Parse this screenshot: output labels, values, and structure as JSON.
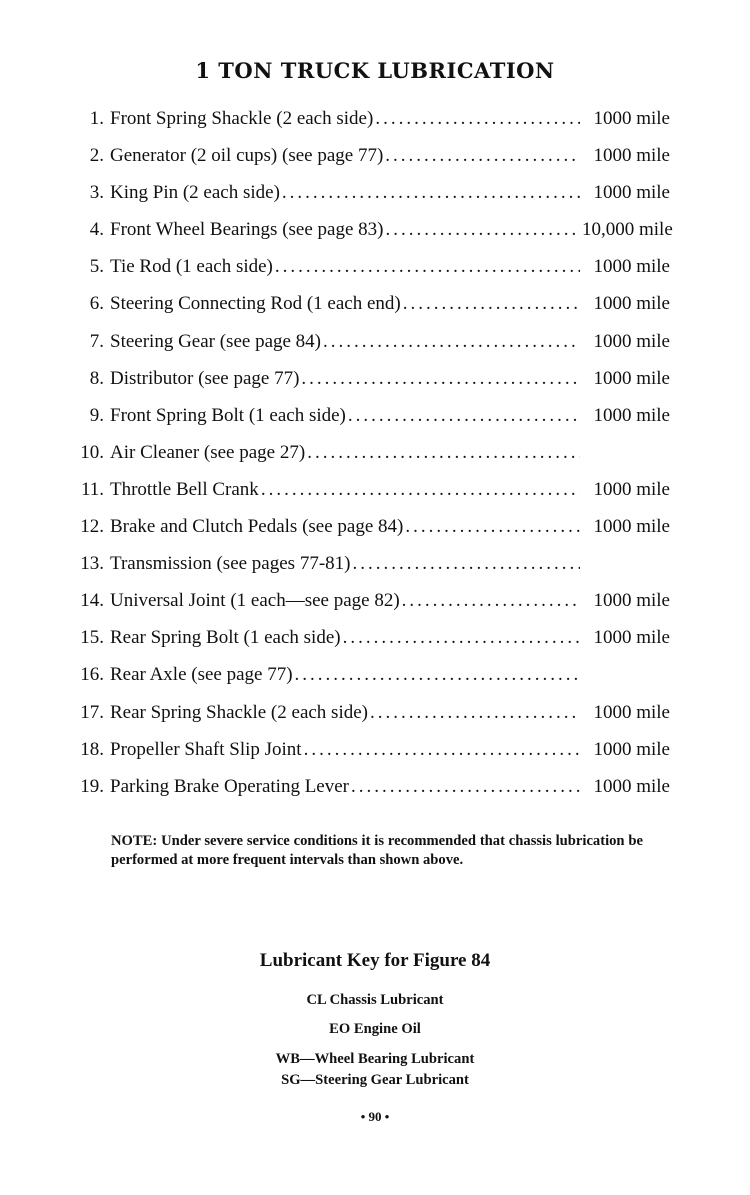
{
  "title": "1 TON TRUCK LUBRICATION",
  "items": [
    {
      "num": "1.",
      "label": "Front Spring Shackle (2 each side)",
      "value": "1000 mile"
    },
    {
      "num": "2.",
      "label": "Generator (2 oil cups) (see page 77)",
      "value": "1000 mile"
    },
    {
      "num": "3.",
      "label": "King Pin (2 each side)",
      "value": "1000 mile"
    },
    {
      "num": "4.",
      "label": "Front Wheel Bearings (see page 83)",
      "value": "10,000 mile"
    },
    {
      "num": "5.",
      "label": "Tie Rod (1 each side)",
      "value": "1000 mile"
    },
    {
      "num": "6.",
      "label": "Steering Connecting Rod (1 each end)",
      "value": "1000 mile"
    },
    {
      "num": "7.",
      "label": "Steering Gear (see page 84)",
      "value": "1000 mile"
    },
    {
      "num": "8.",
      "label": "Distributor (see page 77)",
      "value": "1000 mile"
    },
    {
      "num": "9.",
      "label": "Front Spring Bolt (1 each side)",
      "value": "1000 mile"
    },
    {
      "num": "10.",
      "label": "Air Cleaner (see page 27)",
      "value": ""
    },
    {
      "num": "11.",
      "label": "Throttle Bell Crank",
      "value": "1000 mile"
    },
    {
      "num": "12.",
      "label": "Brake and Clutch Pedals (see page 84)",
      "value": "1000 mile"
    },
    {
      "num": "13.",
      "label": "Transmission (see pages 77-81)",
      "value": ""
    },
    {
      "num": "14.",
      "label": "Universal Joint (1 each—see page 82)",
      "value": "1000 mile"
    },
    {
      "num": "15.",
      "label": "Rear Spring Bolt (1 each side)",
      "value": "1000 mile"
    },
    {
      "num": "16.",
      "label": "Rear Axle (see page 77)",
      "value": ""
    },
    {
      "num": "17.",
      "label": "Rear Spring Shackle (2 each side)",
      "value": "1000 mile"
    },
    {
      "num": "18.",
      "label": "Propeller Shaft Slip Joint",
      "value": "1000 mile"
    },
    {
      "num": "19.",
      "label": "Parking Brake Operating Lever",
      "value": "1000 mile"
    }
  ],
  "note": "NOTE: Under severe service conditions it is recommended that chassis lubrication be performed at more frequent intervals than shown above.",
  "key_title": "Lubricant Key for Figure 84",
  "key": [
    "CL Chassis Lubricant",
    "EO Engine Oil",
    "WB—Wheel Bearing Lubricant",
    "SG—Steering Gear Lubricant"
  ],
  "page_number": "• 90 •"
}
